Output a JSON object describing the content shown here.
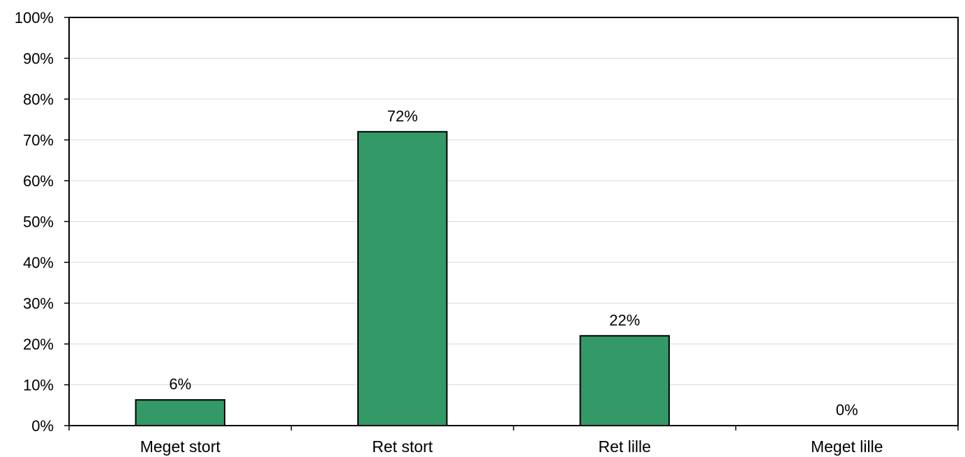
{
  "chart_data": {
    "type": "bar",
    "title": "",
    "xlabel": "",
    "ylabel": "",
    "categories": [
      "Meget stort",
      "Ret stort",
      "Ret lille",
      "Meget lille"
    ],
    "values": [
      6.3,
      72,
      22,
      0
    ],
    "data_labels": [
      "6%",
      "72%",
      "22%",
      "0%"
    ],
    "ylim": [
      0,
      100
    ],
    "yticks": [
      0,
      10,
      20,
      30,
      40,
      50,
      60,
      70,
      80,
      90,
      100
    ],
    "ytick_labels": [
      "0%",
      "10%",
      "20%",
      "30%",
      "40%",
      "50%",
      "60%",
      "70%",
      "80%",
      "90%",
      "100%"
    ],
    "grid": true,
    "legend": "none",
    "colors": {
      "bar": "#339966",
      "bar_stroke": "#000000",
      "grid": "#d9d9d9",
      "axis": "#000000"
    }
  }
}
